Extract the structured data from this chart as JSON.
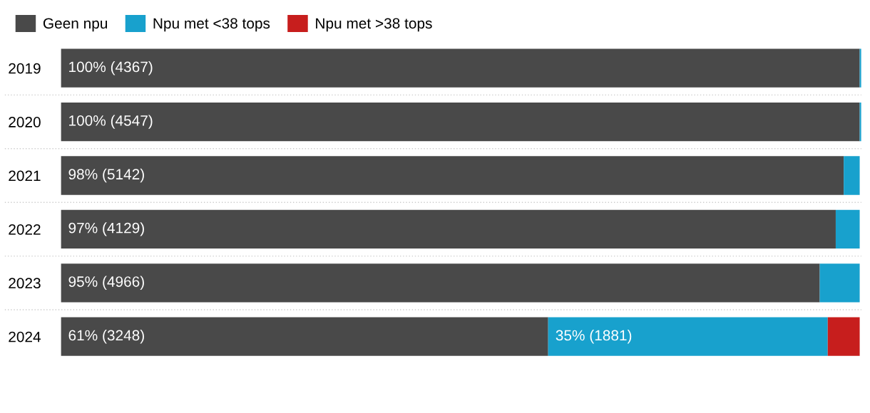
{
  "chart_data": {
    "type": "bar",
    "orientation": "horizontal",
    "stacked": true,
    "legend": "top left",
    "grid": false,
    "categories": [
      "2019",
      "2020",
      "2021",
      "2022",
      "2023",
      "2024"
    ],
    "series": [
      {
        "name": "Geen npu",
        "color": "#494949",
        "values": [
          100,
          100,
          98,
          97,
          95,
          61
        ],
        "value_labels": [
          "100% (4367)",
          "100% (4547)",
          "98% (5142)",
          "97% (4129)",
          "95% (4966)",
          "61% (3248)"
        ]
      },
      {
        "name": "Npu met <38 tops",
        "color": "#18a1cd",
        "values": [
          0.2,
          0.2,
          2,
          3,
          5,
          35
        ],
        "value_labels": [
          null,
          null,
          null,
          null,
          null,
          "35% (1881)"
        ]
      },
      {
        "name": "Npu met >38 tops",
        "color": "#c71e1d",
        "values": [
          null,
          null,
          null,
          null,
          null,
          4
        ],
        "value_labels": [
          null,
          null,
          null,
          null,
          null,
          null
        ]
      }
    ]
  }
}
